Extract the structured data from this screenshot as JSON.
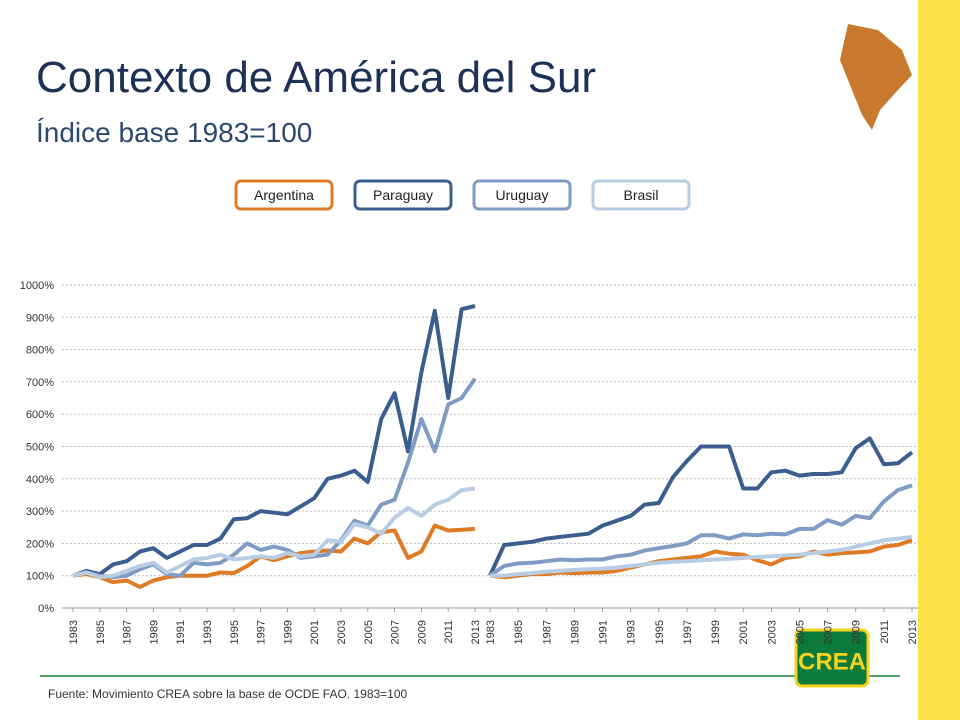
{
  "title": "Contexto de América del Sur",
  "subtitle": "Índice base 1983=100",
  "source": "Fuente: Movimiento CREA sobre la base de OCDE FAO. 1983=100",
  "logo": "CREA",
  "chart_data": [
    {
      "type": "line",
      "x": [
        1983,
        1984,
        1985,
        1986,
        1987,
        1988,
        1989,
        1990,
        1991,
        1992,
        1993,
        1994,
        1995,
        1996,
        1997,
        1998,
        1999,
        2000,
        2001,
        2002,
        2003,
        2004,
        2005,
        2006,
        2007,
        2008,
        2009,
        2010,
        2011,
        2012,
        2013
      ],
      "xticks": [
        1983,
        1985,
        1987,
        1989,
        1991,
        1993,
        1995,
        1997,
        1999,
        2001,
        2003,
        2005,
        2007,
        2009,
        2011,
        2013
      ],
      "ylim": [
        0,
        1000
      ],
      "yticks": [
        {
          "value": 0,
          "label": "0%"
        },
        {
          "value": 100,
          "label": "100%"
        },
        {
          "value": 200,
          "label": "200%"
        },
        {
          "value": 300,
          "label": "300%"
        },
        {
          "value": 400,
          "label": "400%"
        },
        {
          "value": 500,
          "label": "500%"
        },
        {
          "value": 600,
          "label": "600%"
        },
        {
          "value": 700,
          "label": "700%"
        },
        {
          "value": 800,
          "label": "800%"
        },
        {
          "value": 900,
          "label": "900%"
        },
        {
          "value": 1000,
          "label": "1000%"
        }
      ],
      "grid": true,
      "series": [
        {
          "name": "Argentina",
          "color": "#e07b25",
          "values": [
            100,
            105,
            95,
            80,
            85,
            65,
            85,
            95,
            100,
            100,
            100,
            110,
            108,
            130,
            160,
            148,
            160,
            170,
            175,
            178,
            175,
            215,
            200,
            235,
            240,
            155,
            175,
            255,
            240,
            242,
            245
          ]
        },
        {
          "name": "Paraguay",
          "color": "#3a5f8f",
          "values": [
            100,
            115,
            105,
            135,
            145,
            175,
            185,
            155,
            175,
            195,
            195,
            215,
            275,
            278,
            300,
            295,
            290,
            315,
            340,
            400,
            410,
            425,
            390,
            585,
            665,
            485,
            730,
            920,
            650,
            925,
            935
          ]
        },
        {
          "name": "Uruguay",
          "color": "#7f9cc4",
          "values": [
            100,
            110,
            100,
            95,
            100,
            120,
            135,
            105,
            100,
            140,
            135,
            140,
            165,
            200,
            180,
            190,
            180,
            155,
            160,
            165,
            210,
            270,
            255,
            320,
            335,
            450,
            585,
            485,
            630,
            650,
            710
          ]
        },
        {
          "name": "Brasil",
          "color": "#b8cce4",
          "values": [
            100,
            110,
            95,
            100,
            115,
            130,
            140,
            110,
            130,
            150,
            155,
            165,
            150,
            155,
            160,
            155,
            170,
            160,
            165,
            210,
            205,
            260,
            250,
            230,
            280,
            310,
            285,
            320,
            335,
            365,
            370
          ]
        }
      ]
    },
    {
      "type": "line",
      "x": [
        1983,
        1984,
        1985,
        1986,
        1987,
        1988,
        1989,
        1990,
        1991,
        1992,
        1993,
        1994,
        1995,
        1996,
        1997,
        1998,
        1999,
        2000,
        2001,
        2002,
        2003,
        2004,
        2005,
        2006,
        2007,
        2008,
        2009,
        2010,
        2011,
        2012,
        2013
      ],
      "xticks": [
        1983,
        1985,
        1987,
        1989,
        1991,
        1993,
        1995,
        1997,
        1999,
        2001,
        2003,
        2005,
        2007,
        2009,
        2011,
        2013
      ],
      "ylim": [
        0,
        1000
      ],
      "series": [
        {
          "color": "#e07b25",
          "values": [
            100,
            95,
            100,
            105,
            105,
            110,
            108,
            110,
            110,
            115,
            125,
            135,
            145,
            150,
            155,
            160,
            175,
            168,
            165,
            148,
            135,
            155,
            160,
            175,
            165,
            170,
            172,
            175,
            190,
            195,
            210
          ]
        },
        {
          "color": "#3a5f8f",
          "values": [
            100,
            195,
            200,
            205,
            215,
            220,
            225,
            230,
            255,
            270,
            285,
            320,
            325,
            405,
            455,
            500,
            500,
            500,
            370,
            370,
            420,
            425,
            410,
            415,
            415,
            420,
            495,
            525,
            445,
            448,
            482
          ]
        },
        {
          "color": "#7f9cc4",
          "values": [
            100,
            130,
            138,
            140,
            145,
            150,
            148,
            150,
            150,
            160,
            165,
            178,
            185,
            192,
            200,
            225,
            225,
            215,
            228,
            225,
            230,
            228,
            245,
            245,
            272,
            258,
            285,
            278,
            330,
            365,
            380
          ]
        },
        {
          "color": "#b8cce4",
          "values": [
            100,
            100,
            105,
            108,
            112,
            115,
            118,
            120,
            122,
            125,
            130,
            135,
            140,
            143,
            145,
            148,
            150,
            152,
            155,
            158,
            160,
            163,
            165,
            170,
            175,
            180,
            190,
            200,
            210,
            215,
            220
          ]
        }
      ]
    }
  ]
}
